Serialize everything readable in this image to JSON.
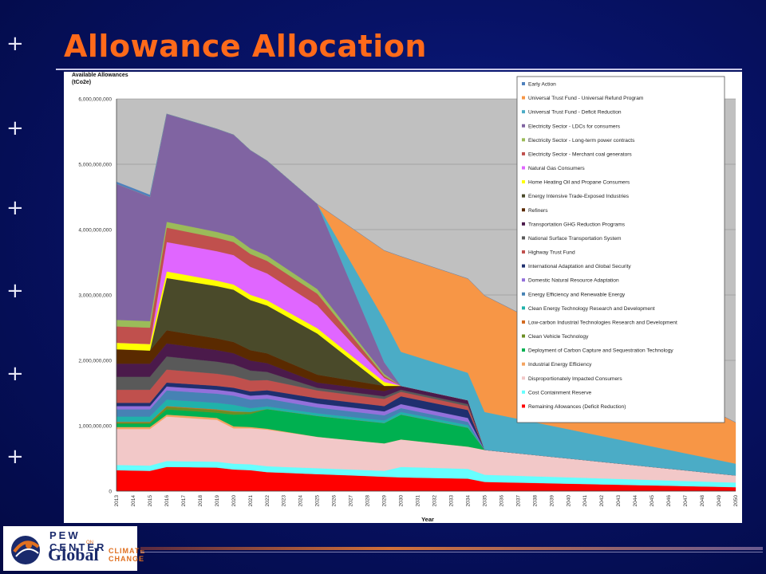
{
  "slide": {
    "title": "Allowance Allocation"
  },
  "logo": {
    "line1": "PEW CENTER",
    "line_on": "ON",
    "line2": "Global",
    "line3a": "CLIMATE",
    "line3b": "CHANGE"
  },
  "colors": {
    "title": "#ff6a1a",
    "background": "#071266"
  },
  "chart_data": {
    "type": "area",
    "stacked": true,
    "ylabel": "Available Allowances\n(tCo2e)",
    "ylabel_line1": "Available Allowances",
    "ylabel_line2": "(tCo2e)",
    "xlabel": "Year",
    "ylim": [
      0,
      6000000000
    ],
    "yticks": [
      0,
      1000000000,
      2000000000,
      3000000000,
      4000000000,
      5000000000,
      6000000000
    ],
    "ytick_labels": [
      "0",
      "1,000,000,000",
      "2,000,000,000",
      "3,000,000,000",
      "4,000,000,000",
      "5,000,000,000",
      "6,000,000,000"
    ],
    "x": [
      "2013",
      "2014",
      "2015",
      "2016",
      "2017",
      "2018",
      "2019",
      "2020",
      "2021",
      "2022",
      "2023",
      "2024",
      "2025",
      "2026",
      "2027",
      "2028",
      "2029",
      "2030",
      "2031",
      "2032",
      "2033",
      "2034",
      "2035",
      "2036",
      "2037",
      "2038",
      "2039",
      "2040",
      "2041",
      "2042",
      "2043",
      "2044",
      "2045",
      "2046",
      "2047",
      "2048",
      "2049",
      "2050"
    ],
    "grid": true,
    "legend_position": "right",
    "series": [
      {
        "name": "Remaining Allowances (Deficit Reduction)",
        "color": "#ff0000",
        "key": [
          [
            0,
            320
          ],
          [
            2,
            310
          ],
          [
            3,
            370
          ],
          [
            6,
            360
          ],
          [
            7,
            330
          ],
          [
            8,
            320
          ],
          [
            9,
            290
          ],
          [
            12,
            260
          ],
          [
            17,
            210
          ],
          [
            21,
            190
          ],
          [
            22,
            140
          ],
          [
            37,
            60
          ]
        ]
      },
      {
        "name": "Cost Containment Reserve",
        "color": "#66ffff",
        "key": [
          [
            0,
            80
          ],
          [
            2,
            80
          ],
          [
            3,
            90
          ],
          [
            7,
            90
          ],
          [
            12,
            90
          ],
          [
            16,
            90
          ],
          [
            17,
            160
          ],
          [
            21,
            150
          ],
          [
            22,
            110
          ],
          [
            37,
            70
          ]
        ]
      },
      {
        "name": "Disproportionately Impacted Consumers",
        "color": "#f2c8c8",
        "key": [
          [
            0,
            550
          ],
          [
            2,
            560
          ],
          [
            3,
            680
          ],
          [
            6,
            640
          ],
          [
            7,
            540
          ],
          [
            9,
            560
          ],
          [
            12,
            480
          ],
          [
            16,
            420
          ],
          [
            17,
            420
          ],
          [
            21,
            340
          ],
          [
            22,
            380
          ],
          [
            37,
            110
          ]
        ]
      },
      {
        "name": "Industrial Energy Efficiency",
        "color": "#f4a460",
        "key": [
          [
            0,
            30
          ],
          [
            2,
            30
          ],
          [
            3,
            30
          ],
          [
            6,
            30
          ],
          [
            7,
            30
          ],
          [
            8,
            20
          ],
          [
            12,
            0
          ],
          [
            37,
            0
          ]
        ]
      },
      {
        "name": "Deployment of Carbon Capture and Sequestration Technology",
        "color": "#00b050",
        "key": [
          [
            0,
            50
          ],
          [
            2,
            50
          ],
          [
            3,
            80
          ],
          [
            6,
            80
          ],
          [
            7,
            180
          ],
          [
            8,
            200
          ],
          [
            9,
            300
          ],
          [
            12,
            320
          ],
          [
            16,
            310
          ],
          [
            17,
            380
          ],
          [
            21,
            290
          ],
          [
            22,
            0
          ],
          [
            37,
            0
          ]
        ]
      },
      {
        "name": "Clean Vehicle Technology",
        "color": "#6b8e23",
        "key": [
          [
            0,
            20
          ],
          [
            2,
            20
          ],
          [
            3,
            40
          ],
          [
            7,
            40
          ],
          [
            8,
            30
          ],
          [
            9,
            0
          ],
          [
            37,
            0
          ]
        ]
      },
      {
        "name": "Low-carbon Industrial Technologies Research and Development",
        "color": "#d2691e",
        "key": [
          [
            0,
            10
          ],
          [
            7,
            10
          ],
          [
            8,
            0
          ],
          [
            37,
            0
          ]
        ]
      },
      {
        "name": "Clean Energy Technology Research and Development",
        "color": "#20b2aa",
        "key": [
          [
            0,
            80
          ],
          [
            2,
            80
          ],
          [
            3,
            100
          ],
          [
            7,
            100
          ],
          [
            8,
            60
          ],
          [
            9,
            40
          ],
          [
            12,
            40
          ],
          [
            16,
            40
          ],
          [
            17,
            40
          ],
          [
            21,
            40
          ],
          [
            22,
            0
          ],
          [
            37,
            0
          ]
        ]
      },
      {
        "name": "Energy Efficiency and Renewable Energy",
        "color": "#4682b4",
        "key": [
          [
            0,
            110
          ],
          [
            2,
            110
          ],
          [
            3,
            140
          ],
          [
            7,
            140
          ],
          [
            12,
            90
          ],
          [
            16,
            80
          ],
          [
            17,
            60
          ],
          [
            21,
            50
          ],
          [
            22,
            0
          ],
          [
            37,
            0
          ]
        ]
      },
      {
        "name": "Domestic Natural Resource Adaptation",
        "color": "#9370db",
        "key": [
          [
            0,
            50
          ],
          [
            2,
            50
          ],
          [
            3,
            60
          ],
          [
            7,
            60
          ],
          [
            12,
            60
          ],
          [
            16,
            60
          ],
          [
            17,
            60
          ],
          [
            21,
            60
          ],
          [
            22,
            0
          ],
          [
            37,
            0
          ]
        ]
      },
      {
        "name": "International Adaptation and Global Security",
        "color": "#1f2f6f",
        "key": [
          [
            0,
            50
          ],
          [
            2,
            50
          ],
          [
            3,
            60
          ],
          [
            7,
            60
          ],
          [
            12,
            80
          ],
          [
            16,
            80
          ],
          [
            17,
            120
          ],
          [
            21,
            120
          ],
          [
            22,
            0
          ],
          [
            37,
            0
          ]
        ]
      },
      {
        "name": "Highway Trust Fund",
        "color": "#c0504d",
        "key": [
          [
            0,
            200
          ],
          [
            2,
            200
          ],
          [
            3,
            200
          ],
          [
            7,
            180
          ],
          [
            12,
            120
          ],
          [
            16,
            110
          ],
          [
            17,
            70
          ],
          [
            21,
            60
          ],
          [
            22,
            0
          ],
          [
            37,
            0
          ]
        ]
      },
      {
        "name": "National Surface Transportation System",
        "color": "#595959",
        "key": [
          [
            0,
            200
          ],
          [
            2,
            200
          ],
          [
            3,
            200
          ],
          [
            7,
            180
          ],
          [
            12,
            40
          ],
          [
            16,
            40
          ],
          [
            17,
            30
          ],
          [
            21,
            30
          ],
          [
            22,
            0
          ],
          [
            37,
            0
          ]
        ]
      },
      {
        "name": "Transportation GHG Reduction Programs",
        "color": "#4b1a4b",
        "key": [
          [
            0,
            200
          ],
          [
            2,
            200
          ],
          [
            3,
            200
          ],
          [
            7,
            170
          ],
          [
            12,
            80
          ],
          [
            16,
            80
          ],
          [
            17,
            60
          ],
          [
            21,
            60
          ],
          [
            22,
            0
          ],
          [
            37,
            0
          ]
        ]
      },
      {
        "name": "Refiners",
        "color": "#5a2a00",
        "key": [
          [
            0,
            220
          ],
          [
            2,
            200
          ],
          [
            3,
            200
          ],
          [
            7,
            170
          ],
          [
            12,
            120
          ],
          [
            16,
            80
          ],
          [
            17,
            0
          ],
          [
            37,
            0
          ]
        ]
      },
      {
        "name": "Energy Intensive Trade-Exposed Industries",
        "color": "#4a4a2a",
        "key": [
          [
            0,
            0
          ],
          [
            2,
            0
          ],
          [
            3,
            800
          ],
          [
            7,
            800
          ],
          [
            12,
            630
          ],
          [
            16,
            0
          ],
          [
            37,
            0
          ]
        ]
      },
      {
        "name": "Home Heating Oil and Propane Consumers",
        "color": "#ffff00",
        "key": [
          [
            0,
            100
          ],
          [
            2,
            100
          ],
          [
            3,
            100
          ],
          [
            7,
            80
          ],
          [
            12,
            80
          ],
          [
            16,
            60
          ],
          [
            17,
            0
          ],
          [
            37,
            0
          ]
        ]
      },
      {
        "name": "Natural Gas Consumers",
        "color": "#e066ff",
        "key": [
          [
            0,
            0
          ],
          [
            2,
            0
          ],
          [
            3,
            450
          ],
          [
            7,
            450
          ],
          [
            12,
            350
          ],
          [
            16,
            60
          ],
          [
            17,
            0
          ],
          [
            37,
            0
          ]
        ]
      },
      {
        "name": "Electricity Sector - Merchant coal generators",
        "color": "#c0504d",
        "key": [
          [
            0,
            250
          ],
          [
            2,
            250
          ],
          [
            3,
            220
          ],
          [
            7,
            200
          ],
          [
            12,
            180
          ],
          [
            16,
            30
          ],
          [
            17,
            0
          ],
          [
            37,
            0
          ]
        ]
      },
      {
        "name": "Electricity Sector - Long-term power contracts",
        "color": "#9bbb59",
        "key": [
          [
            0,
            100
          ],
          [
            2,
            100
          ],
          [
            3,
            90
          ],
          [
            7,
            90
          ],
          [
            12,
            70
          ],
          [
            16,
            30
          ],
          [
            17,
            0
          ],
          [
            37,
            0
          ]
        ]
      },
      {
        "name": "Electricity Sector - LDCs for consumers",
        "color": "#8064a2",
        "key": [
          [
            0,
            2080
          ],
          [
            2,
            1900
          ],
          [
            3,
            1650
          ],
          [
            7,
            1550
          ],
          [
            12,
            1300
          ],
          [
            16,
            180
          ],
          [
            17,
            0
          ],
          [
            37,
            0
          ]
        ]
      },
      {
        "name": "Universal Trust Fund - Deficit Reduction",
        "color": "#4bacc6",
        "key": [
          [
            0,
            0
          ],
          [
            12,
            0
          ],
          [
            16,
            650
          ],
          [
            17,
            520
          ],
          [
            21,
            420
          ],
          [
            22,
            580
          ],
          [
            37,
            180
          ]
        ]
      },
      {
        "name": "Universal Trust Fund - Universal Refund Program",
        "color": "#f79646",
        "key": [
          [
            0,
            0
          ],
          [
            12,
            0
          ],
          [
            16,
            1060
          ],
          [
            17,
            1460
          ],
          [
            21,
            1440
          ],
          [
            22,
            1780
          ],
          [
            37,
            630
          ]
        ]
      },
      {
        "name": "Early Action",
        "color": "#4f81bd",
        "key": [
          [
            0,
            30
          ],
          [
            2,
            30
          ],
          [
            3,
            0
          ],
          [
            37,
            0
          ]
        ]
      }
    ]
  }
}
